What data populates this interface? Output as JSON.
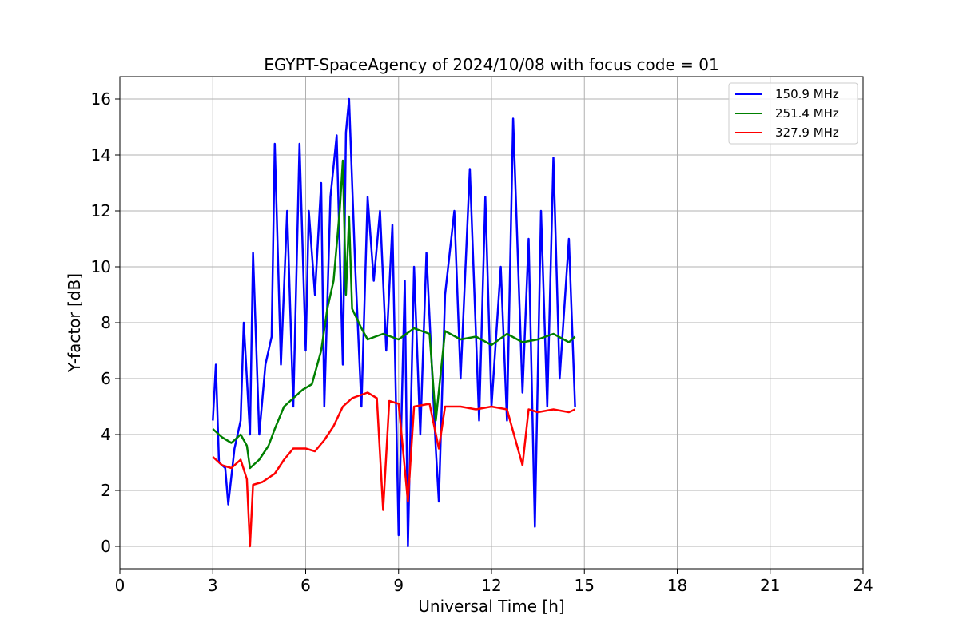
{
  "chart_data": {
    "type": "line",
    "title": "EGYPT-SpaceAgency of 2024/10/08 with focus code = 01",
    "xlabel": "Universal Time [h]",
    "ylabel": "Y-factor [dB]",
    "xlim": [
      0,
      24
    ],
    "ylim": [
      -0.8,
      16.8
    ],
    "xticks": [
      0,
      3,
      6,
      9,
      12,
      15,
      18,
      21,
      24
    ],
    "yticks": [
      0,
      2,
      4,
      6,
      8,
      10,
      12,
      14,
      16
    ],
    "grid": true,
    "legend_position": "top-right",
    "series": [
      {
        "name": "150.9 MHz",
        "color": "#0000ff",
        "points": [
          [
            3.0,
            4.5
          ],
          [
            3.1,
            6.5
          ],
          [
            3.2,
            3.0
          ],
          [
            3.4,
            2.8
          ],
          [
            3.5,
            1.5
          ],
          [
            3.7,
            3.5
          ],
          [
            3.9,
            4.5
          ],
          [
            4.0,
            8.0
          ],
          [
            4.2,
            4.0
          ],
          [
            4.3,
            10.5
          ],
          [
            4.5,
            4.0
          ],
          [
            4.7,
            6.5
          ],
          [
            4.9,
            7.5
          ],
          [
            5.0,
            14.4
          ],
          [
            5.2,
            6.5
          ],
          [
            5.4,
            12.0
          ],
          [
            5.6,
            5.0
          ],
          [
            5.8,
            14.4
          ],
          [
            6.0,
            7.0
          ],
          [
            6.1,
            12.0
          ],
          [
            6.3,
            9.0
          ],
          [
            6.5,
            13.0
          ],
          [
            6.6,
            5.0
          ],
          [
            6.8,
            12.5
          ],
          [
            7.0,
            14.7
          ],
          [
            7.2,
            6.5
          ],
          [
            7.3,
            14.8
          ],
          [
            7.4,
            16.0
          ],
          [
            7.6,
            10.0
          ],
          [
            7.8,
            5.0
          ],
          [
            8.0,
            12.5
          ],
          [
            8.2,
            9.5
          ],
          [
            8.4,
            12.0
          ],
          [
            8.6,
            7.0
          ],
          [
            8.8,
            11.5
          ],
          [
            9.0,
            0.4
          ],
          [
            9.2,
            9.5
          ],
          [
            9.3,
            0.0
          ],
          [
            9.5,
            10.0
          ],
          [
            9.7,
            4.0
          ],
          [
            9.9,
            10.5
          ],
          [
            10.2,
            3.5
          ],
          [
            10.3,
            1.6
          ],
          [
            10.5,
            9.0
          ],
          [
            10.8,
            12.0
          ],
          [
            11.0,
            6.0
          ],
          [
            11.3,
            13.5
          ],
          [
            11.6,
            4.5
          ],
          [
            11.8,
            12.5
          ],
          [
            12.0,
            5.0
          ],
          [
            12.3,
            10.0
          ],
          [
            12.5,
            4.5
          ],
          [
            12.7,
            15.3
          ],
          [
            13.0,
            5.5
          ],
          [
            13.2,
            11.0
          ],
          [
            13.4,
            0.7
          ],
          [
            13.6,
            12.0
          ],
          [
            13.8,
            5.0
          ],
          [
            14.0,
            13.9
          ],
          [
            14.2,
            6.0
          ],
          [
            14.5,
            11.0
          ],
          [
            14.7,
            5.0
          ]
        ]
      },
      {
        "name": "251.4 MHz",
        "color": "#008000",
        "points": [
          [
            3.0,
            4.2
          ],
          [
            3.3,
            3.9
          ],
          [
            3.6,
            3.7
          ],
          [
            3.9,
            4.0
          ],
          [
            4.1,
            3.6
          ],
          [
            4.2,
            2.8
          ],
          [
            4.5,
            3.1
          ],
          [
            4.8,
            3.6
          ],
          [
            5.0,
            4.2
          ],
          [
            5.3,
            5.0
          ],
          [
            5.6,
            5.3
          ],
          [
            5.9,
            5.6
          ],
          [
            6.2,
            5.8
          ],
          [
            6.5,
            7.0
          ],
          [
            6.7,
            8.5
          ],
          [
            6.9,
            9.5
          ],
          [
            7.1,
            12.0
          ],
          [
            7.2,
            13.8
          ],
          [
            7.3,
            9.0
          ],
          [
            7.4,
            11.8
          ],
          [
            7.5,
            8.5
          ],
          [
            7.8,
            7.8
          ],
          [
            8.0,
            7.4
          ],
          [
            8.5,
            7.6
          ],
          [
            9.0,
            7.4
          ],
          [
            9.5,
            7.8
          ],
          [
            10.0,
            7.6
          ],
          [
            10.2,
            4.5
          ],
          [
            10.5,
            7.7
          ],
          [
            11.0,
            7.4
          ],
          [
            11.5,
            7.5
          ],
          [
            12.0,
            7.2
          ],
          [
            12.5,
            7.6
          ],
          [
            13.0,
            7.3
          ],
          [
            13.5,
            7.4
          ],
          [
            14.0,
            7.6
          ],
          [
            14.5,
            7.3
          ],
          [
            14.7,
            7.5
          ]
        ]
      },
      {
        "name": "327.9 MHz",
        "color": "#ff0000",
        "points": [
          [
            3.0,
            3.2
          ],
          [
            3.3,
            2.9
          ],
          [
            3.6,
            2.8
          ],
          [
            3.9,
            3.1
          ],
          [
            4.1,
            2.4
          ],
          [
            4.2,
            0.0
          ],
          [
            4.3,
            2.2
          ],
          [
            4.6,
            2.3
          ],
          [
            5.0,
            2.6
          ],
          [
            5.3,
            3.1
          ],
          [
            5.6,
            3.5
          ],
          [
            6.0,
            3.5
          ],
          [
            6.3,
            3.4
          ],
          [
            6.6,
            3.8
          ],
          [
            6.9,
            4.3
          ],
          [
            7.2,
            5.0
          ],
          [
            7.5,
            5.3
          ],
          [
            8.0,
            5.5
          ],
          [
            8.3,
            5.3
          ],
          [
            8.5,
            1.3
          ],
          [
            8.7,
            5.2
          ],
          [
            9.0,
            5.1
          ],
          [
            9.3,
            1.6
          ],
          [
            9.5,
            5.0
          ],
          [
            10.0,
            5.1
          ],
          [
            10.3,
            3.5
          ],
          [
            10.5,
            5.0
          ],
          [
            11.0,
            5.0
          ],
          [
            11.5,
            4.9
          ],
          [
            12.0,
            5.0
          ],
          [
            12.5,
            4.9
          ],
          [
            13.0,
            2.9
          ],
          [
            13.2,
            4.9
          ],
          [
            13.5,
            4.8
          ],
          [
            14.0,
            4.9
          ],
          [
            14.5,
            4.8
          ],
          [
            14.7,
            4.9
          ]
        ]
      }
    ]
  }
}
